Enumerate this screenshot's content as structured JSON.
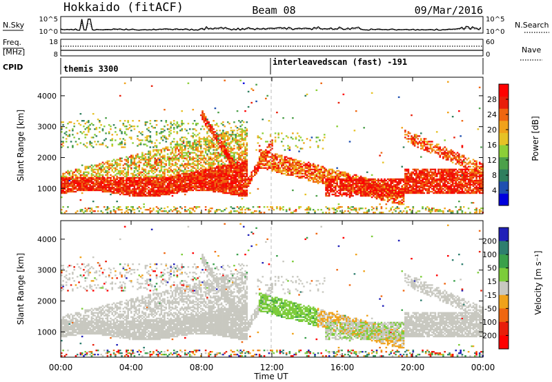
{
  "header": {
    "radar": "Hokkaido (fitACF)",
    "beam": "Beam 08",
    "date": "09/Mar/2016"
  },
  "strip_labels": {
    "nsky": "N.Sky",
    "nsky_ticks": [
      "10^5",
      "10^0"
    ],
    "nsearch": "N.Search",
    "nsearch_ticks": [
      "10^5",
      "10^0"
    ],
    "freq": "Freq.",
    "freq_unit": "[MHz]",
    "freq_ticks": [
      "18",
      "8"
    ],
    "nave": "Nave",
    "nave_ticks": [
      "60",
      "0"
    ],
    "cpid": "CPID",
    "cpid_segments": [
      "themis 3300",
      "interleavedscan (fast) -191"
    ]
  },
  "chart_data": [
    {
      "type": "heatmap",
      "name": "power-panel",
      "ylabel": "Slant Range [km]",
      "xlabel": "",
      "xlim_hours": [
        0,
        24
      ],
      "ylim": [
        180,
        4600
      ],
      "yticks": [
        1000,
        2000,
        3000,
        4000
      ],
      "colorbar": {
        "label": "Power [dB]",
        "ticks": [
          4,
          8,
          12,
          16,
          20,
          24,
          28
        ],
        "range": [
          0,
          32
        ],
        "colors": [
          "#0000dd",
          "#1f4fb0",
          "#2e7e5e",
          "#4ca04a",
          "#8ccf38",
          "#e6c226",
          "#f0a21a",
          "#ef6610",
          "#e81e0a",
          "#ff0000"
        ]
      }
    },
    {
      "type": "heatmap",
      "name": "velocity-panel",
      "ylabel": "Slant Range [km]",
      "xlabel": "Time UT",
      "xticks": [
        "00:00",
        "04:00",
        "08:00",
        "12:00",
        "16:00",
        "20:00",
        "00:00"
      ],
      "xlim_hours": [
        0,
        24
      ],
      "ylim": [
        180,
        4600
      ],
      "yticks": [
        1000,
        2000,
        3000,
        4000
      ],
      "colorbar": {
        "label": "Velocity [m s⁻¹]",
        "ticks": [
          200,
          100,
          50,
          15,
          -15,
          -50,
          -100,
          -200
        ],
        "colors": [
          "#2020b8",
          "#2e7e6e",
          "#3aa04a",
          "#7ccc3a",
          "#c8c8c0",
          "#f0a21a",
          "#ef6610",
          "#e81e0a",
          "#ff0000"
        ]
      }
    }
  ]
}
